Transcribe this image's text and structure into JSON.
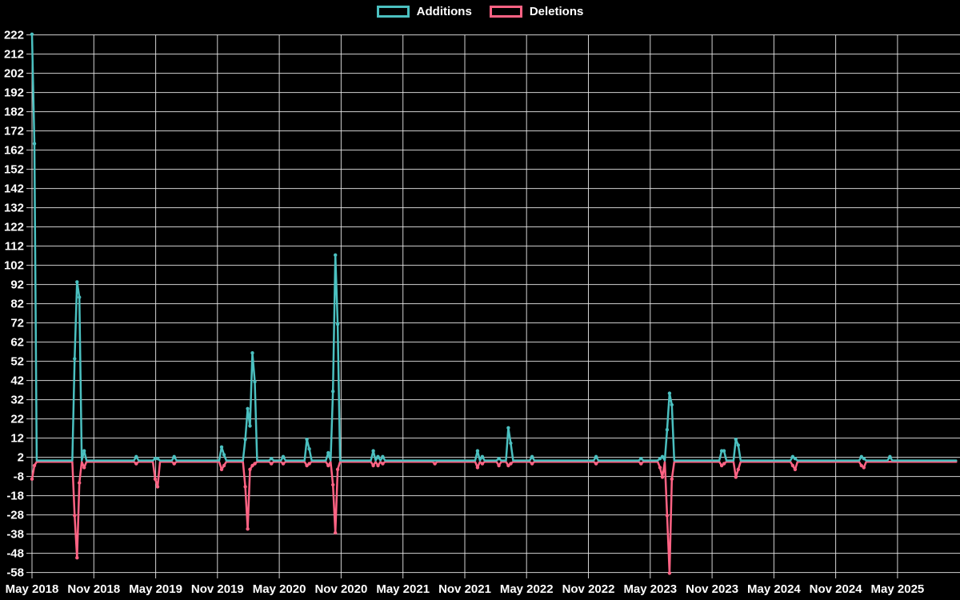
{
  "legend": {
    "position": "top",
    "items": [
      {
        "label": "Additions",
        "color": "#4bc0c0"
      },
      {
        "label": "Deletions",
        "color": "#ff6384"
      }
    ]
  },
  "chart_data": {
    "type": "line",
    "title": "",
    "background": "#000000",
    "grid": true,
    "grid_color": "#e9e9e9",
    "text_color": "#ffffff",
    "x_unit": "weeks_since_first_point",
    "weeks_total": 390,
    "baseline_value": 0,
    "note": "weeks not listed in points have value 0",
    "x_axis": {
      "tick_labels": [
        "May 2018",
        "Nov 2018",
        "May 2019",
        "Nov 2019",
        "May 2020",
        "Nov 2020",
        "May 2021",
        "Nov 2021",
        "May 2022",
        "Nov 2022",
        "May 2023",
        "Nov 2023",
        "May 2024",
        "Nov 2024",
        "May 2025"
      ],
      "tick_interval_weeks": 26.087
    },
    "y_axis": {
      "min": -58,
      "max": 222,
      "tick_step": 10
    },
    "series": [
      {
        "name": "Additions",
        "color": "#4bc0c0",
        "points": [
          [
            0,
            222
          ],
          [
            1,
            165
          ],
          [
            18,
            53
          ],
          [
            19,
            93
          ],
          [
            20,
            85
          ],
          [
            22,
            5
          ],
          [
            44,
            2
          ],
          [
            52,
            1
          ],
          [
            53,
            1
          ],
          [
            60,
            2
          ],
          [
            80,
            7
          ],
          [
            81,
            3
          ],
          [
            90,
            11
          ],
          [
            91,
            27
          ],
          [
            92,
            18
          ],
          [
            93,
            56
          ],
          [
            94,
            41
          ],
          [
            101,
            1
          ],
          [
            106,
            2
          ],
          [
            116,
            11
          ],
          [
            117,
            6
          ],
          [
            125,
            4
          ],
          [
            127,
            36
          ],
          [
            128,
            107
          ],
          [
            129,
            71
          ],
          [
            144,
            5
          ],
          [
            146,
            2
          ],
          [
            148,
            2
          ],
          [
            188,
            5
          ],
          [
            190,
            2
          ],
          [
            197,
            1
          ],
          [
            201,
            17
          ],
          [
            202,
            9
          ],
          [
            211,
            2
          ],
          [
            238,
            2
          ],
          [
            257,
            1
          ],
          [
            265,
            1
          ],
          [
            266,
            2
          ],
          [
            268,
            16
          ],
          [
            269,
            35
          ],
          [
            270,
            29
          ],
          [
            291,
            5
          ],
          [
            292,
            5
          ],
          [
            297,
            11
          ],
          [
            298,
            8
          ],
          [
            321,
            2
          ],
          [
            322,
            1
          ],
          [
            350,
            2
          ],
          [
            351,
            1
          ],
          [
            362,
            2
          ]
        ]
      },
      {
        "name": "Deletions",
        "color": "#ff6384",
        "points": [
          [
            0,
            -9
          ],
          [
            1,
            -2
          ],
          [
            18,
            -28
          ],
          [
            19,
            -50
          ],
          [
            20,
            -11
          ],
          [
            22,
            -3
          ],
          [
            44,
            -1
          ],
          [
            52,
            -9
          ],
          [
            53,
            -13
          ],
          [
            60,
            -1
          ],
          [
            80,
            -4
          ],
          [
            81,
            -2
          ],
          [
            90,
            -13
          ],
          [
            91,
            -35
          ],
          [
            92,
            -4
          ],
          [
            93,
            -2
          ],
          [
            94,
            -1
          ],
          [
            101,
            -1
          ],
          [
            106,
            -1
          ],
          [
            116,
            -2
          ],
          [
            117,
            -1
          ],
          [
            125,
            -2
          ],
          [
            127,
            -12
          ],
          [
            128,
            -37
          ],
          [
            129,
            -4
          ],
          [
            144,
            -2
          ],
          [
            146,
            -2
          ],
          [
            148,
            -1
          ],
          [
            170,
            -1
          ],
          [
            188,
            -3
          ],
          [
            190,
            -1
          ],
          [
            197,
            -2
          ],
          [
            201,
            -2
          ],
          [
            202,
            -1
          ],
          [
            211,
            -1
          ],
          [
            238,
            -1
          ],
          [
            257,
            -1
          ],
          [
            265,
            -3
          ],
          [
            266,
            -8
          ],
          [
            268,
            -28
          ],
          [
            269,
            -58
          ],
          [
            270,
            -9
          ],
          [
            291,
            -2
          ],
          [
            292,
            -1
          ],
          [
            297,
            -8
          ],
          [
            298,
            -4
          ],
          [
            321,
            -2
          ],
          [
            322,
            -4
          ],
          [
            350,
            -2
          ],
          [
            351,
            -3
          ]
        ]
      }
    ]
  }
}
